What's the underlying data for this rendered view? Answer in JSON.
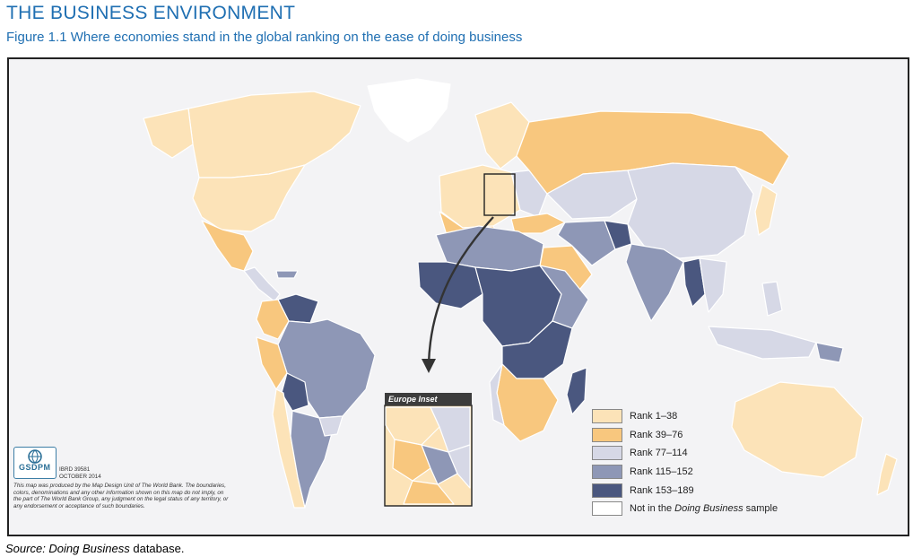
{
  "header": {
    "section_title": "THE BUSINESS ENVIRONMENT",
    "figure_caption": "Figure 1.1 Where economies stand in the global ranking on the ease of doing business"
  },
  "colors": {
    "rank_1_38": "#fce3b8",
    "rank_39_76": "#f8c77e",
    "rank_77_114": "#d6d8e6",
    "rank_115_152": "#8e97b6",
    "rank_153_189": "#4a577f",
    "not_in_sample": "#ffffff",
    "ocean": "#f3f3f5",
    "title_blue": "#1f6fb2"
  },
  "legend": {
    "items": [
      {
        "label": "Rank 1–38",
        "color": "#fce3b8"
      },
      {
        "label": "Rank 39–76",
        "color": "#f8c77e"
      },
      {
        "label": "Rank 77–114",
        "color": "#d6d8e6"
      },
      {
        "label": "Rank 115–152",
        "color": "#8e97b6"
      },
      {
        "label": "Rank 153–189",
        "color": "#4a577f"
      }
    ],
    "not_in_sample": {
      "prefix": "Not in the ",
      "italic": "Doing Business",
      "suffix": " sample"
    }
  },
  "inset": {
    "title": "Europe Inset"
  },
  "credits": {
    "logo_text": "GSDPM",
    "logo_subtext": "Map Design Unit",
    "map_id": "IBRD 39581",
    "date": "OCTOBER 2014",
    "note": "This map was produced by the Map Design Unit of The World Bank. The boundaries, colors, denominations and any other information shown on this map do not imply, on the part of The World Bank Group, any judgment on the legal status of any territory, or any endorsement or acceptance of such boundaries."
  },
  "source": {
    "prefix": "Source: ",
    "italic": "Doing Business",
    "suffix": " database."
  }
}
